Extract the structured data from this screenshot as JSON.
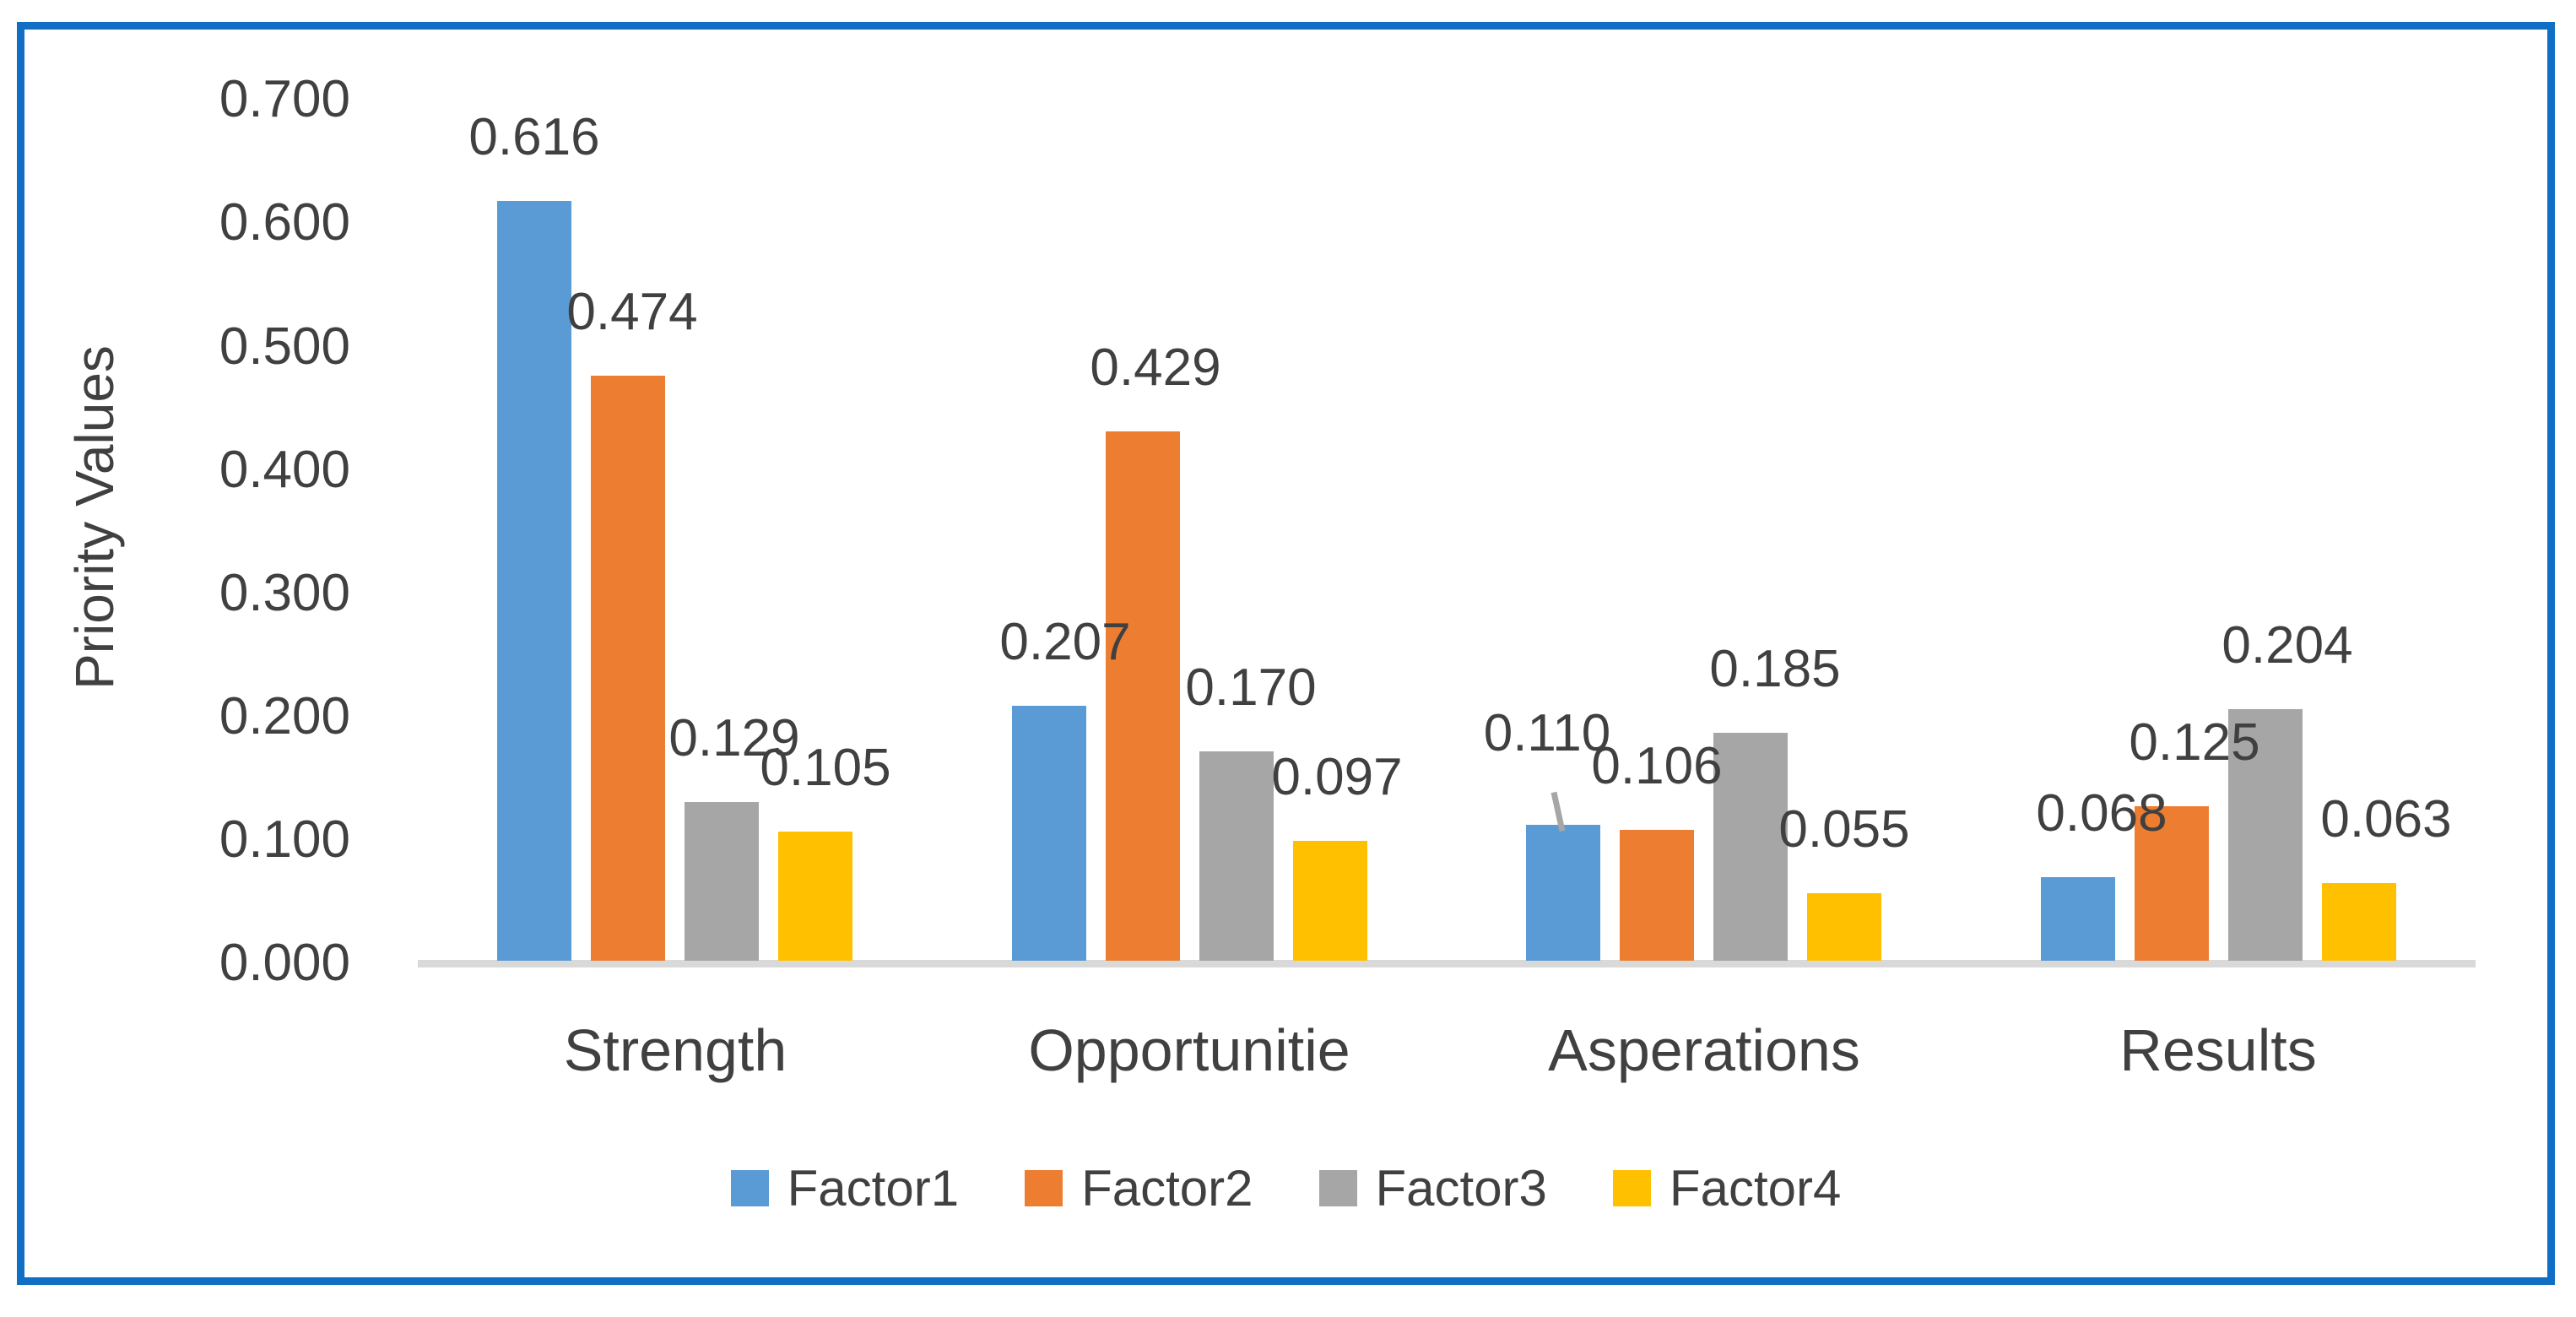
{
  "chart_data": {
    "type": "bar",
    "title": "",
    "categories": [
      "Strength",
      "Opportunitie",
      "Asperations",
      "Results"
    ],
    "series": [
      {
        "name": "Factor1",
        "color": "#5B9BD5",
        "values": [
          0.616,
          0.207,
          0.11,
          0.068
        ]
      },
      {
        "name": "Factor2",
        "color": "#ED7D31",
        "values": [
          0.474,
          0.429,
          0.106,
          0.125
        ]
      },
      {
        "name": "Factor3",
        "color": "#A6A6A6",
        "values": [
          0.129,
          0.17,
          0.185,
          0.204
        ]
      },
      {
        "name": "Factor4",
        "color": "#FFC000",
        "values": [
          0.105,
          0.097,
          0.055,
          0.063
        ]
      }
    ],
    "xlabel": "",
    "ylabel": "Priority Values",
    "ylim": [
      0,
      0.7
    ],
    "yticks": [
      "0.000",
      "0.100",
      "0.200",
      "0.300",
      "0.400",
      "0.500",
      "0.600",
      "0.700"
    ],
    "value_labels": [
      [
        "0.616",
        "0.207",
        "0.110",
        "0.068"
      ],
      [
        "0.474",
        "0.429",
        "0.106",
        "0.125"
      ],
      [
        "0.129",
        "0.170",
        "0.185",
        "0.204"
      ],
      [
        "0.105",
        "0.097",
        "0.055",
        "0.063"
      ]
    ],
    "grid": false,
    "legend_position": "bottom",
    "annotations": [
      {
        "type": "leader-line",
        "category": "Asperations",
        "series": "Factor1",
        "note": "gray line connecting raised 0.110 data label to top of bar"
      }
    ],
    "layout_hints": {
      "label_dx": [
        [
          0,
          5,
          15,
          12
        ],
        [
          19,
          15,
          17,
          8
        ],
        [
          -19,
          0,
          29,
          0
        ],
        [
          28,
          27,
          26,
          32
        ]
      ],
      "label_raise": [
        [
          0,
          0,
          0,
          0
        ],
        [
          0,
          0,
          0,
          0
        ],
        [
          33,
          0,
          0,
          0
        ],
        [
          0,
          0,
          0,
          0
        ]
      ]
    }
  },
  "frame": {
    "border_color": "#106FC5",
    "background": "#FFFFFF"
  },
  "axis": {
    "line_color": "#D9D9D9",
    "text_color": "#404040"
  }
}
